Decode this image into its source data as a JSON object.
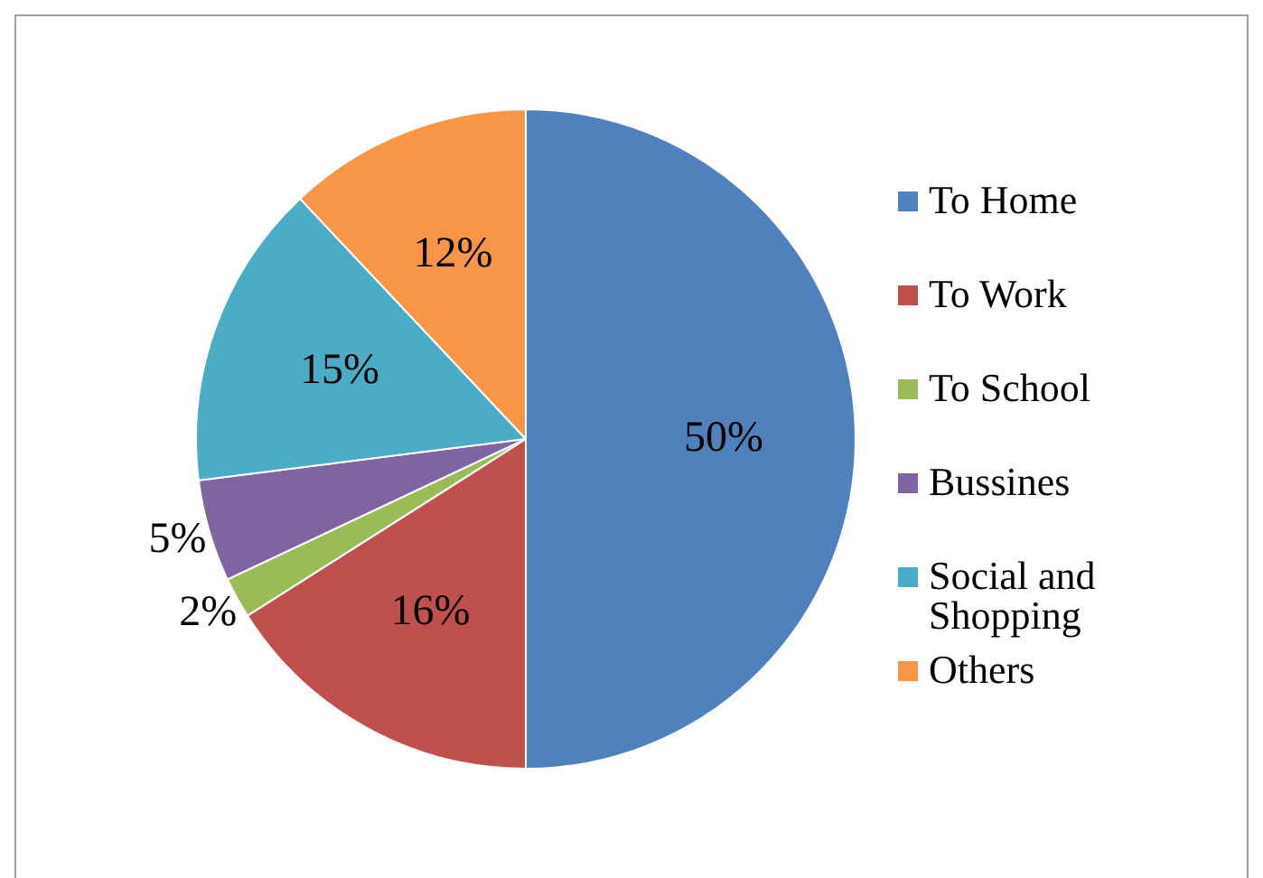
{
  "chart_data": {
    "type": "pie",
    "categories": [
      "To Home",
      "To Work",
      "To School",
      "Bussines",
      "Social and Shopping",
      "Others"
    ],
    "values": [
      50,
      16,
      2,
      5,
      15,
      12
    ],
    "colors": [
      "#4f81bd",
      "#c0504d",
      "#9bbb59",
      "#8064a2",
      "#4bacc6",
      "#f79646"
    ],
    "value_labels": [
      "50%",
      "16%",
      "2%",
      "5%",
      "15%",
      "12%"
    ],
    "legend": "right"
  }
}
